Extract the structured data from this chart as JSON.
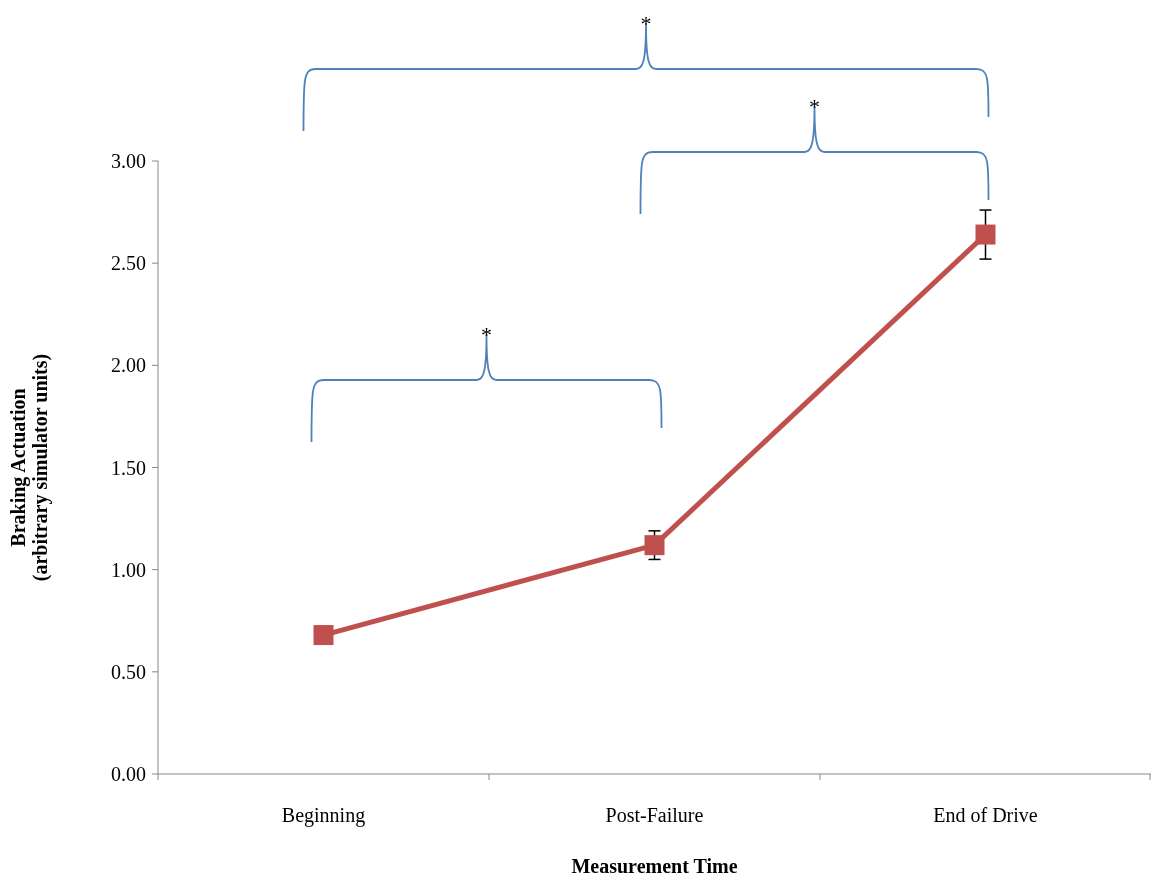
{
  "chart_data": {
    "type": "line",
    "xlabel": "Measurement Time",
    "ylabel": "Braking Actuation\n(arbitrary simulator units)",
    "categories": [
      "Beginning",
      "Post-Failure",
      "End of Drive"
    ],
    "series": [
      {
        "color": "#c0504d",
        "values": [
          0.68,
          1.12,
          2.64
        ],
        "errors": [
          null,
          0.07,
          0.12
        ]
      }
    ],
    "ylim": [
      0,
      3
    ],
    "yticks": [
      {
        "value": 0,
        "label": "0.00"
      },
      {
        "value": 0.5,
        "label": "0.50"
      },
      {
        "value": 1,
        "label": "1.00"
      },
      {
        "value": 1.5,
        "label": "1.50"
      },
      {
        "value": 2,
        "label": "2.00"
      },
      {
        "value": 2.5,
        "label": "2.50"
      },
      {
        "value": 3,
        "label": "3.00"
      }
    ],
    "marker": "square",
    "line_style": "solid",
    "grid": false,
    "annotations": [
      "*",
      "*",
      "*"
    ]
  }
}
